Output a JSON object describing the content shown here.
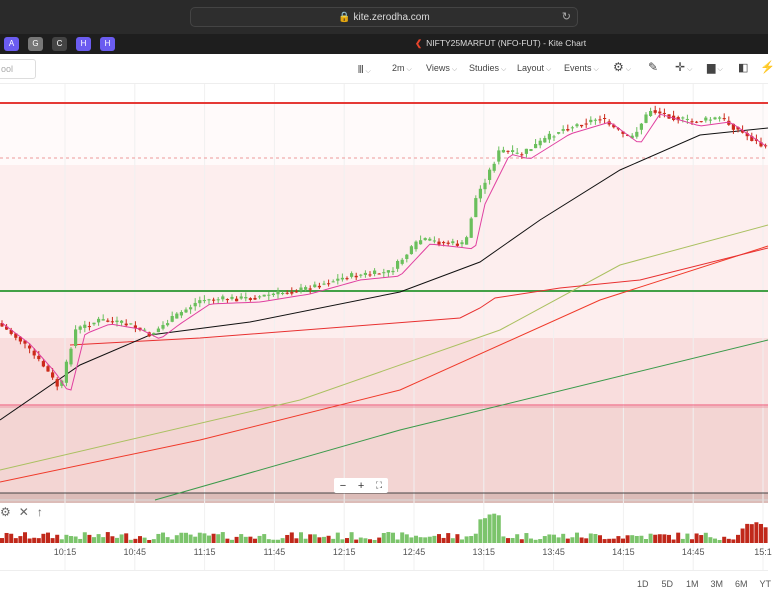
{
  "browser": {
    "url": "kite.zerodha.com",
    "tab_title": "NIFTY25MARFUT (NFO-FUT) - Kite Chart"
  },
  "extensions": [
    {
      "icon": "app-icon",
      "color": "#6b5cf0"
    },
    {
      "icon": "g-icon",
      "color": "#777"
    },
    {
      "icon": "circle-icon",
      "color": "#444"
    },
    {
      "icon": "h-icon",
      "color": "#6b5cf0"
    },
    {
      "icon": "h-icon",
      "color": "#6b5cf0"
    }
  ],
  "toolbar": {
    "symbol_placeholder": "ool",
    "interval": "2m",
    "views": "Views",
    "studies": "Studies",
    "layout": "Layout",
    "events": "Events"
  },
  "chart": {
    "colors": {
      "up": "#6abf5c",
      "down": "#cc2a1a",
      "resistance": "#e53935",
      "support": "#43a047"
    }
  },
  "volume": {
    "controls": [
      "gear-icon",
      "close-icon",
      "arrow-up-icon"
    ]
  },
  "time_axis": [
    "10:15",
    "10:45",
    "11:15",
    "11:45",
    "12:15",
    "12:45",
    "13:15",
    "13:45",
    "14:15",
    "14:45",
    "15:1"
  ],
  "zoom_controls": [
    "−",
    "+",
    "⛶"
  ],
  "ranges": [
    "1D",
    "5D",
    "1M",
    "3M",
    "6M",
    "YT"
  ]
}
